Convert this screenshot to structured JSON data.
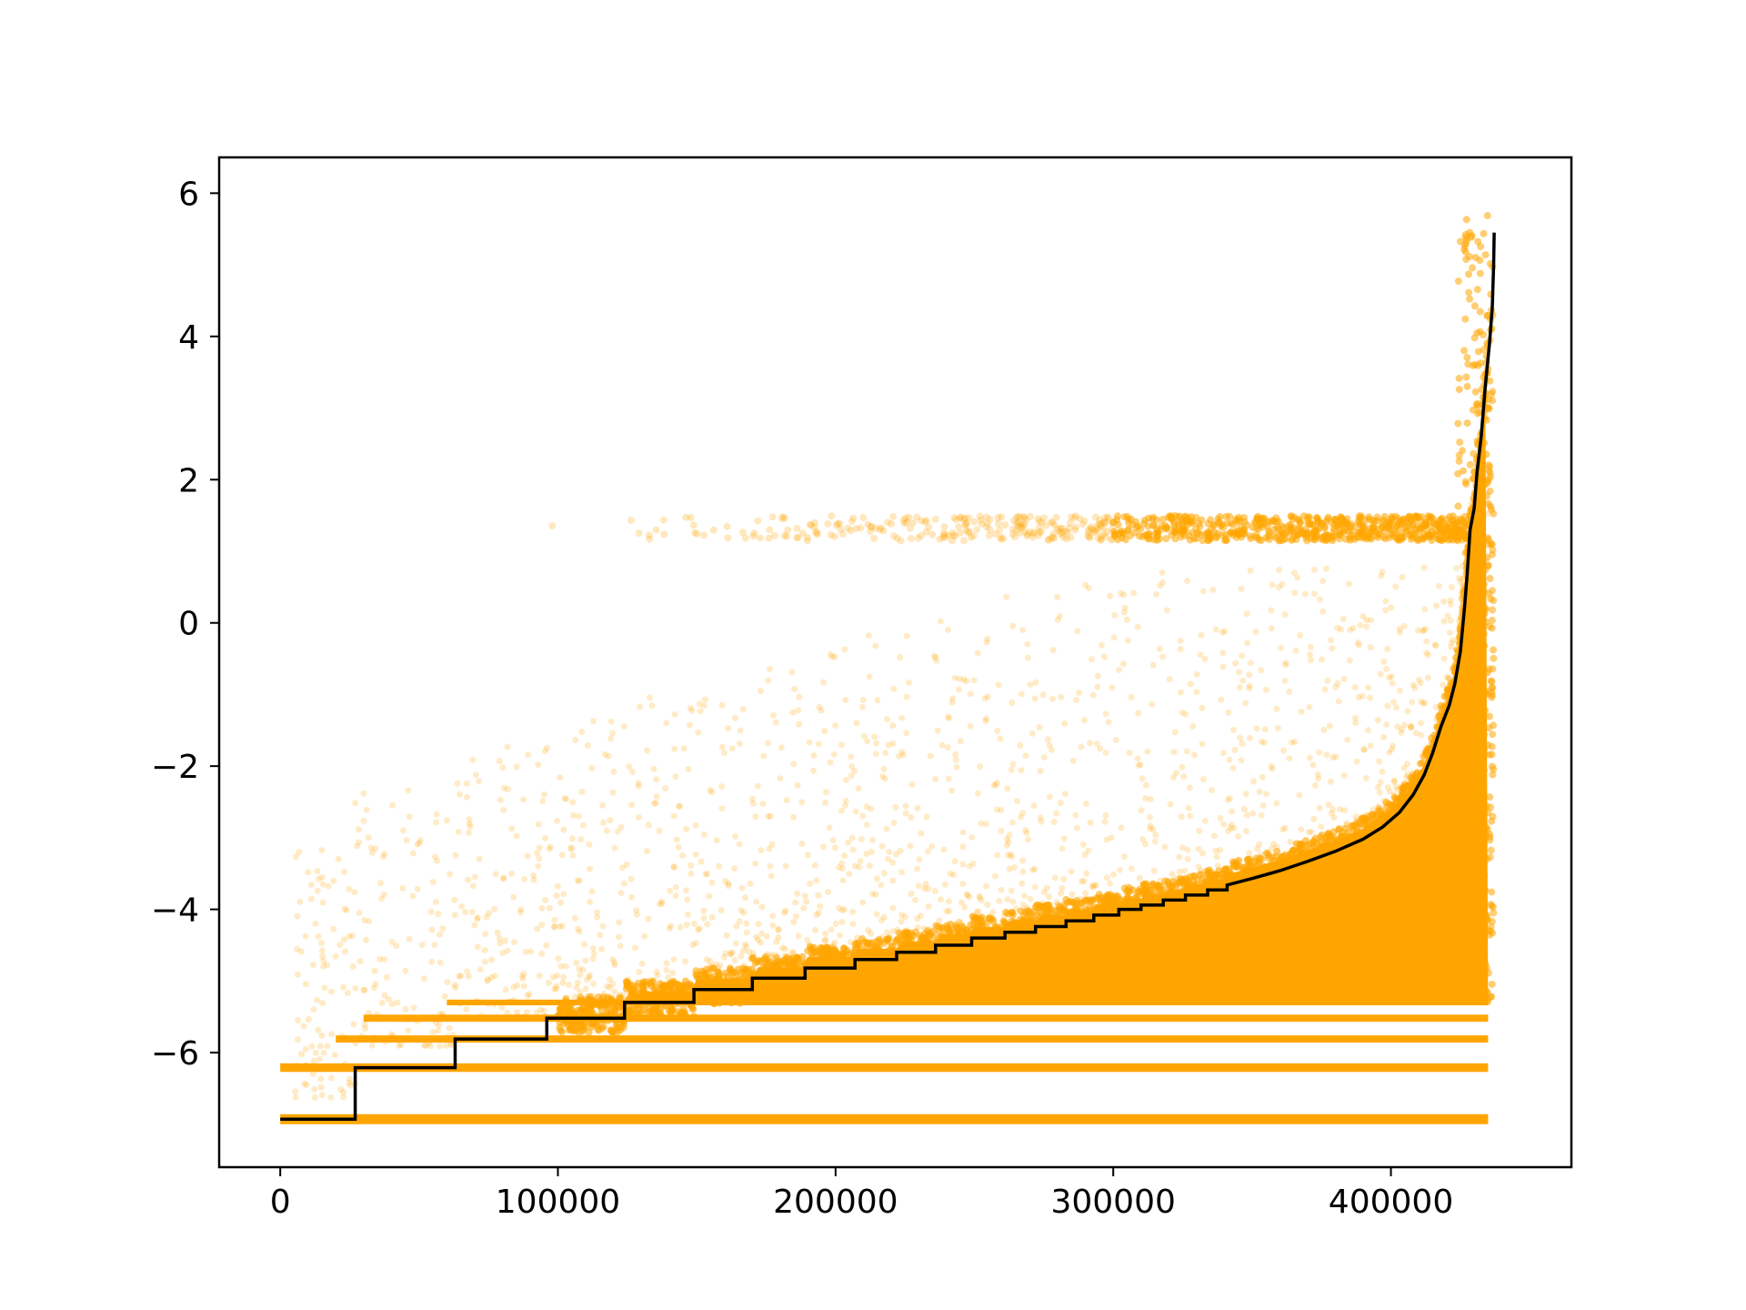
{
  "chart_data": {
    "type": "scatter",
    "title": "",
    "xlabel": "",
    "ylabel": "",
    "xlim": [
      -22000,
      465000
    ],
    "ylim": [
      -7.6,
      6.5
    ],
    "grid": false,
    "legend": "none",
    "x_ticks": [
      0,
      100000,
      200000,
      300000,
      400000
    ],
    "x_tick_labels": [
      "0",
      "100000",
      "200000",
      "300000",
      "400000"
    ],
    "y_ticks": [
      -6,
      -4,
      -2,
      0,
      2,
      4,
      6
    ],
    "y_tick_labels": [
      "−6",
      "−4",
      "−2",
      "0",
      "2",
      "4",
      "6"
    ],
    "scatter_color": "#ffa500",
    "line_color": "#000000",
    "series": [
      {
        "kind": "step",
        "points": [
          [
            0,
            -6.93
          ],
          [
            27000,
            -6.93
          ],
          [
            27000,
            -6.21
          ],
          [
            63000,
            -6.21
          ],
          [
            63000,
            -5.81
          ],
          [
            96000,
            -5.81
          ],
          [
            96000,
            -5.52
          ],
          [
            124000,
            -5.52
          ],
          [
            124000,
            -5.3
          ],
          [
            149000,
            -5.3
          ],
          [
            149000,
            -5.12
          ],
          [
            170000,
            -5.12
          ],
          [
            170000,
            -4.96
          ],
          [
            189000,
            -4.96
          ],
          [
            189000,
            -4.82
          ],
          [
            207000,
            -4.82
          ],
          [
            207000,
            -4.7
          ],
          [
            222000,
            -4.7
          ],
          [
            222000,
            -4.6
          ],
          [
            236000,
            -4.6
          ],
          [
            236000,
            -4.5
          ],
          [
            249000,
            -4.5
          ],
          [
            249000,
            -4.4
          ],
          [
            261000,
            -4.4
          ],
          [
            261000,
            -4.32
          ],
          [
            272000,
            -4.32
          ],
          [
            272000,
            -4.24
          ],
          [
            283000,
            -4.24
          ],
          [
            283000,
            -4.16
          ],
          [
            293000,
            -4.16
          ],
          [
            293000,
            -4.08
          ],
          [
            302000,
            -4.08
          ],
          [
            302000,
            -4.0
          ],
          [
            310000,
            -4.0
          ],
          [
            310000,
            -3.94
          ],
          [
            318000,
            -3.94
          ],
          [
            318000,
            -3.87
          ],
          [
            326000,
            -3.87
          ],
          [
            326000,
            -3.8
          ],
          [
            334000,
            -3.8
          ],
          [
            334000,
            -3.73
          ],
          [
            341000,
            -3.73
          ],
          [
            341000,
            -3.66
          ]
        ]
      },
      {
        "kind": "line",
        "points": [
          [
            341000,
            -3.66
          ],
          [
            350000,
            -3.57
          ],
          [
            360000,
            -3.46
          ],
          [
            370000,
            -3.33
          ],
          [
            380000,
            -3.19
          ],
          [
            390000,
            -3.02
          ],
          [
            397000,
            -2.85
          ],
          [
            403000,
            -2.65
          ],
          [
            408000,
            -2.4
          ],
          [
            412000,
            -2.12
          ],
          [
            415000,
            -1.82
          ],
          [
            418000,
            -1.45
          ],
          [
            421000,
            -1.15
          ],
          [
            423000,
            -0.85
          ],
          [
            425000,
            -0.4
          ],
          [
            426500,
            0.2
          ],
          [
            427500,
            0.7
          ],
          [
            428500,
            1.3
          ],
          [
            430000,
            1.6
          ],
          [
            431000,
            2.1
          ],
          [
            432500,
            2.6
          ],
          [
            434000,
            3.3
          ],
          [
            435500,
            3.9
          ],
          [
            436500,
            4.4
          ],
          [
            437000,
            5.0
          ],
          [
            437200,
            5.45
          ]
        ]
      }
    ]
  }
}
